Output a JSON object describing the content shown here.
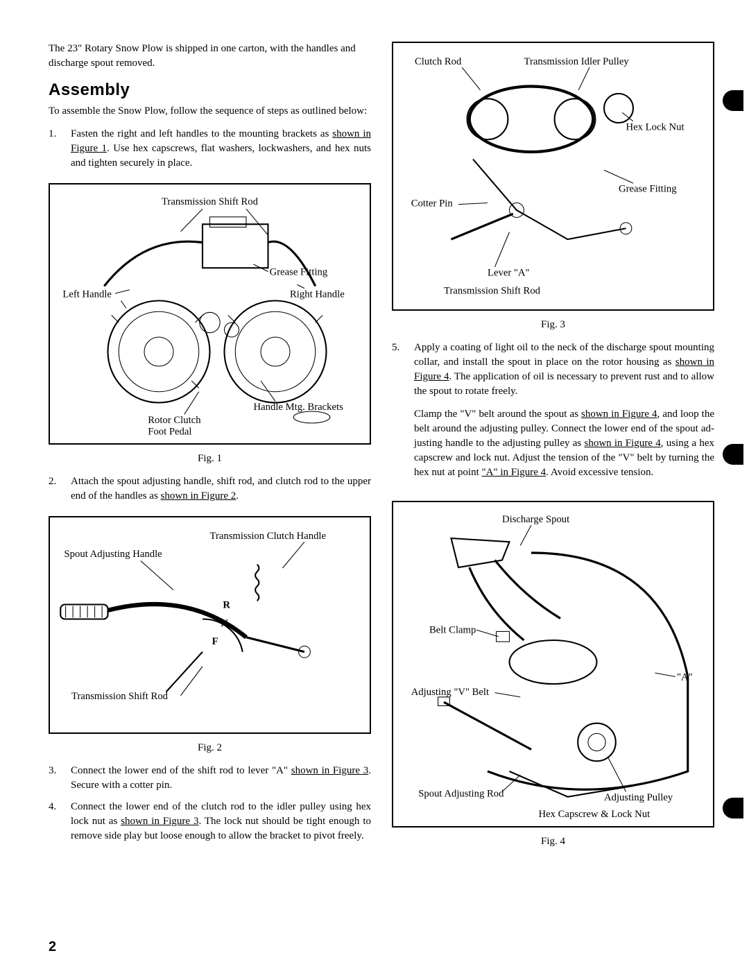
{
  "intro": "The 23\" Rotary Snow Plow is shipped in one carton, with the handles and discharge spout removed.",
  "heading": "Assembly",
  "subintro": "To assemble the Snow Plow, follow the sequence of steps as outlined below:",
  "steps_left": [
    {
      "num": "1.",
      "parts": [
        {
          "t": "Fasten the right and left handles to the mounting brackets as "
        },
        {
          "t": "shown in Figure 1",
          "u": true
        },
        {
          "t": ". Use hex cap­screws, flat washers, lockwashers, and hex nuts and tighten securely in place."
        }
      ]
    },
    {
      "num": "2.",
      "parts": [
        {
          "t": "Attach the spout adjusting handle, shift rod, and clutch rod to the upper end of the handles as "
        },
        {
          "t": "shown in Figure 2",
          "u": true
        },
        {
          "t": "."
        }
      ]
    },
    {
      "num": "3.",
      "parts": [
        {
          "t": "Connect the lower end of the shift rod to lever \"A\" "
        },
        {
          "t": "shown in Figure 3",
          "u": true
        },
        {
          "t": ". Secure with a cotter pin."
        }
      ]
    },
    {
      "num": "4.",
      "parts": [
        {
          "t": "Connect the lower end of the clutch rod to the idler pulley using hex lock nut as "
        },
        {
          "t": "shown in Fig­ure 3",
          "u": true
        },
        {
          "t": ". The lock nut should be tight enough to remove side play but loose enough to allow the bracket to pivot freely."
        }
      ]
    }
  ],
  "step5": {
    "num": "5.",
    "para1_parts": [
      {
        "t": "Apply a coating of light oil to the neck of the dis­charge spout mounting collar, and install the spout in place on the rotor housing as "
      },
      {
        "t": "shown in Figure 4",
        "u": true
      },
      {
        "t": ". The application of oil is necessary to prevent rust and to allow the spout to rotate freely."
      }
    ],
    "para2_parts": [
      {
        "t": "Clamp the \"V\" belt around the spout as "
      },
      {
        "t": "shown in Figure 4",
        "u": true
      },
      {
        "t": ", and loop the belt around the adjusting pulley. Connect the lower end of the spout ad­justing handle to the adjusting pulley as "
      },
      {
        "t": "shown in Figure 4",
        "u": true
      },
      {
        "t": ", using a hex capscrew and lock nut. Adjust the tension of the \"V\" belt by turning the hex nut at point "
      },
      {
        "t": "\"A\" in Figure 4",
        "u": true
      },
      {
        "t": ". Avoid excessive tension."
      }
    ]
  },
  "fig1": {
    "caption": "Fig. 1",
    "labels": {
      "shift_rod": "Transmission Shift Rod",
      "grease": "Grease Fitting",
      "left_handle": "Left Handle",
      "right_handle": "Right Handle",
      "rotor_clutch": "Rotor Clutch",
      "foot_pedal": "Foot Pedal",
      "mtg_brackets": "Handle Mtg. Brackets"
    }
  },
  "fig2": {
    "caption": "Fig. 2",
    "labels": {
      "clutch_handle": "Transmission Clutch Handle",
      "spout_handle": "Spout Adjusting Handle",
      "shift_rod": "Transmission Shift Rod",
      "r": "R",
      "n": "N",
      "f": "F"
    }
  },
  "fig3": {
    "caption": "Fig. 3",
    "labels": {
      "clutch_rod": "Clutch Rod",
      "idler_pulley": "Transmission Idler Pulley",
      "hex_lock": "Hex Lock Nut",
      "grease": "Grease Fitting",
      "cotter_pin": "Cotter Pin",
      "lever_a": "Lever \"A\"",
      "shift_rod": "Transmission Shift Rod"
    }
  },
  "fig4": {
    "caption": "Fig. 4",
    "labels": {
      "discharge": "Discharge Spout",
      "belt_clamp": "Belt Clamp",
      "a": "\"A\"",
      "v_belt": "Adjusting \"V\" Belt",
      "adj_rod": "Spout Adjusting Rod",
      "adj_pulley": "Adjusting Pulley",
      "capscrew": "Hex Capscrew & Lock Nut"
    }
  },
  "page_number": "2"
}
